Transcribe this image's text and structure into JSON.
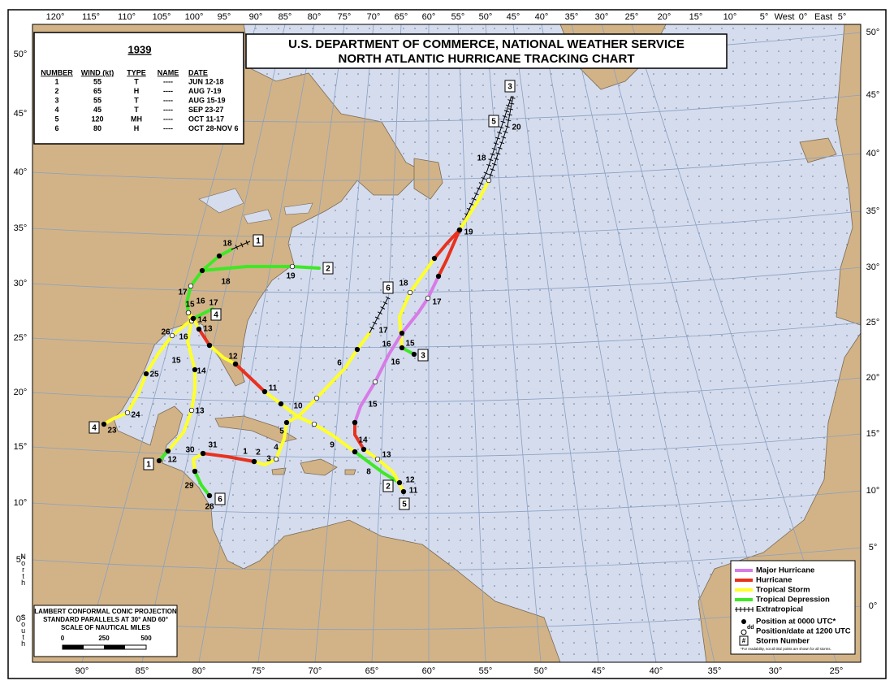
{
  "header": {
    "title_line1": "U.S. DEPARTMENT OF COMMERCE, NATIONAL WEATHER SERVICE",
    "title_line2": "NORTH ATLANTIC HURRICANE TRACKING CHART"
  },
  "season": {
    "year": "1939",
    "columns": [
      "NUMBER",
      "WIND (kt)",
      "TYPE",
      "NAME",
      "DATE"
    ],
    "rows": [
      [
        "1",
        "55",
        "T",
        "----",
        "JUN 12-18"
      ],
      [
        "2",
        "65",
        "H",
        "----",
        "AUG 7-19"
      ],
      [
        "3",
        "55",
        "T",
        "----",
        "AUG 15-19"
      ],
      [
        "4",
        "45",
        "T",
        "----",
        "SEP 23-27"
      ],
      [
        "5",
        "120",
        "MH",
        "----",
        "OCT 11-17"
      ],
      [
        "6",
        "80",
        "H",
        "----",
        "OCT 28-NOV 6"
      ]
    ]
  },
  "longitude_top": [
    "120°",
    "115°",
    "110°",
    "105°",
    "100°",
    "95°",
    "90°",
    "85°",
    "80°",
    "75°",
    "70°",
    "65°",
    "60°",
    "55°",
    "50°",
    "45°",
    "40°",
    "35°",
    "30°",
    "25°",
    "20°",
    "15°",
    "10°",
    "5°",
    "West",
    "0°",
    "East",
    "5°"
  ],
  "longitude_bottom": [
    "90°",
    "85°",
    "80°",
    "75°",
    "70°",
    "65°",
    "60°",
    "55°",
    "50°",
    "45°",
    "40°",
    "35°",
    "30°",
    "25°"
  ],
  "latitude_left": [
    "50°",
    "45°",
    "40°",
    "35°",
    "30°",
    "25°",
    "20°",
    "15°",
    "10°",
    "5°",
    "0°"
  ],
  "latitude_left_words": [
    "North",
    "South"
  ],
  "latitude_right": [
    "50°",
    "45°",
    "40°",
    "35°",
    "30°",
    "25°",
    "20°",
    "15°",
    "10°",
    "5°",
    "0°"
  ],
  "storms": [
    {
      "number": "1",
      "day_labels": [
        "12",
        "13",
        "14",
        "15",
        "16",
        "17",
        "18"
      ]
    },
    {
      "number": "2",
      "day_labels": [
        "8",
        "9",
        "10",
        "11",
        "12",
        "13",
        "14",
        "15",
        "16",
        "17",
        "18",
        "19"
      ]
    },
    {
      "number": "3",
      "day_labels": [
        "15",
        "16",
        "17",
        "18",
        "19"
      ]
    },
    {
      "number": "4",
      "day_labels": [
        "23",
        "24",
        "25",
        "26"
      ]
    },
    {
      "number": "5",
      "day_labels": [
        "11",
        "12",
        "13",
        "14",
        "15",
        "16",
        "17",
        "18",
        "20"
      ]
    },
    {
      "number": "6",
      "day_labels": [
        "28",
        "29",
        "30",
        "31",
        "1",
        "2",
        "3",
        "4",
        "5",
        "6"
      ]
    }
  ],
  "legend": {
    "items": [
      "Major Hurricane",
      "Hurricane",
      "Tropical Storm",
      "Tropical Depression",
      "Extratropical"
    ],
    "position_0000": "Position at 0000 UTC*",
    "dd_symbol": "dd",
    "position_1200": "Position/date at 1200 UTC",
    "storm_symbol": "#",
    "storm_number": "Storm Number",
    "footnote": "*For readability, not all 00Z points are shown for all storms."
  },
  "projection": {
    "line1": "LAMBERT CONFORMAL CONIC PROJECTION",
    "line2": "STANDARD PARALLELS AT 30° AND 60°",
    "line3": "SCALE OF NAUTICAL MILES",
    "scale_labels": [
      "0",
      "250",
      "500"
    ]
  }
}
